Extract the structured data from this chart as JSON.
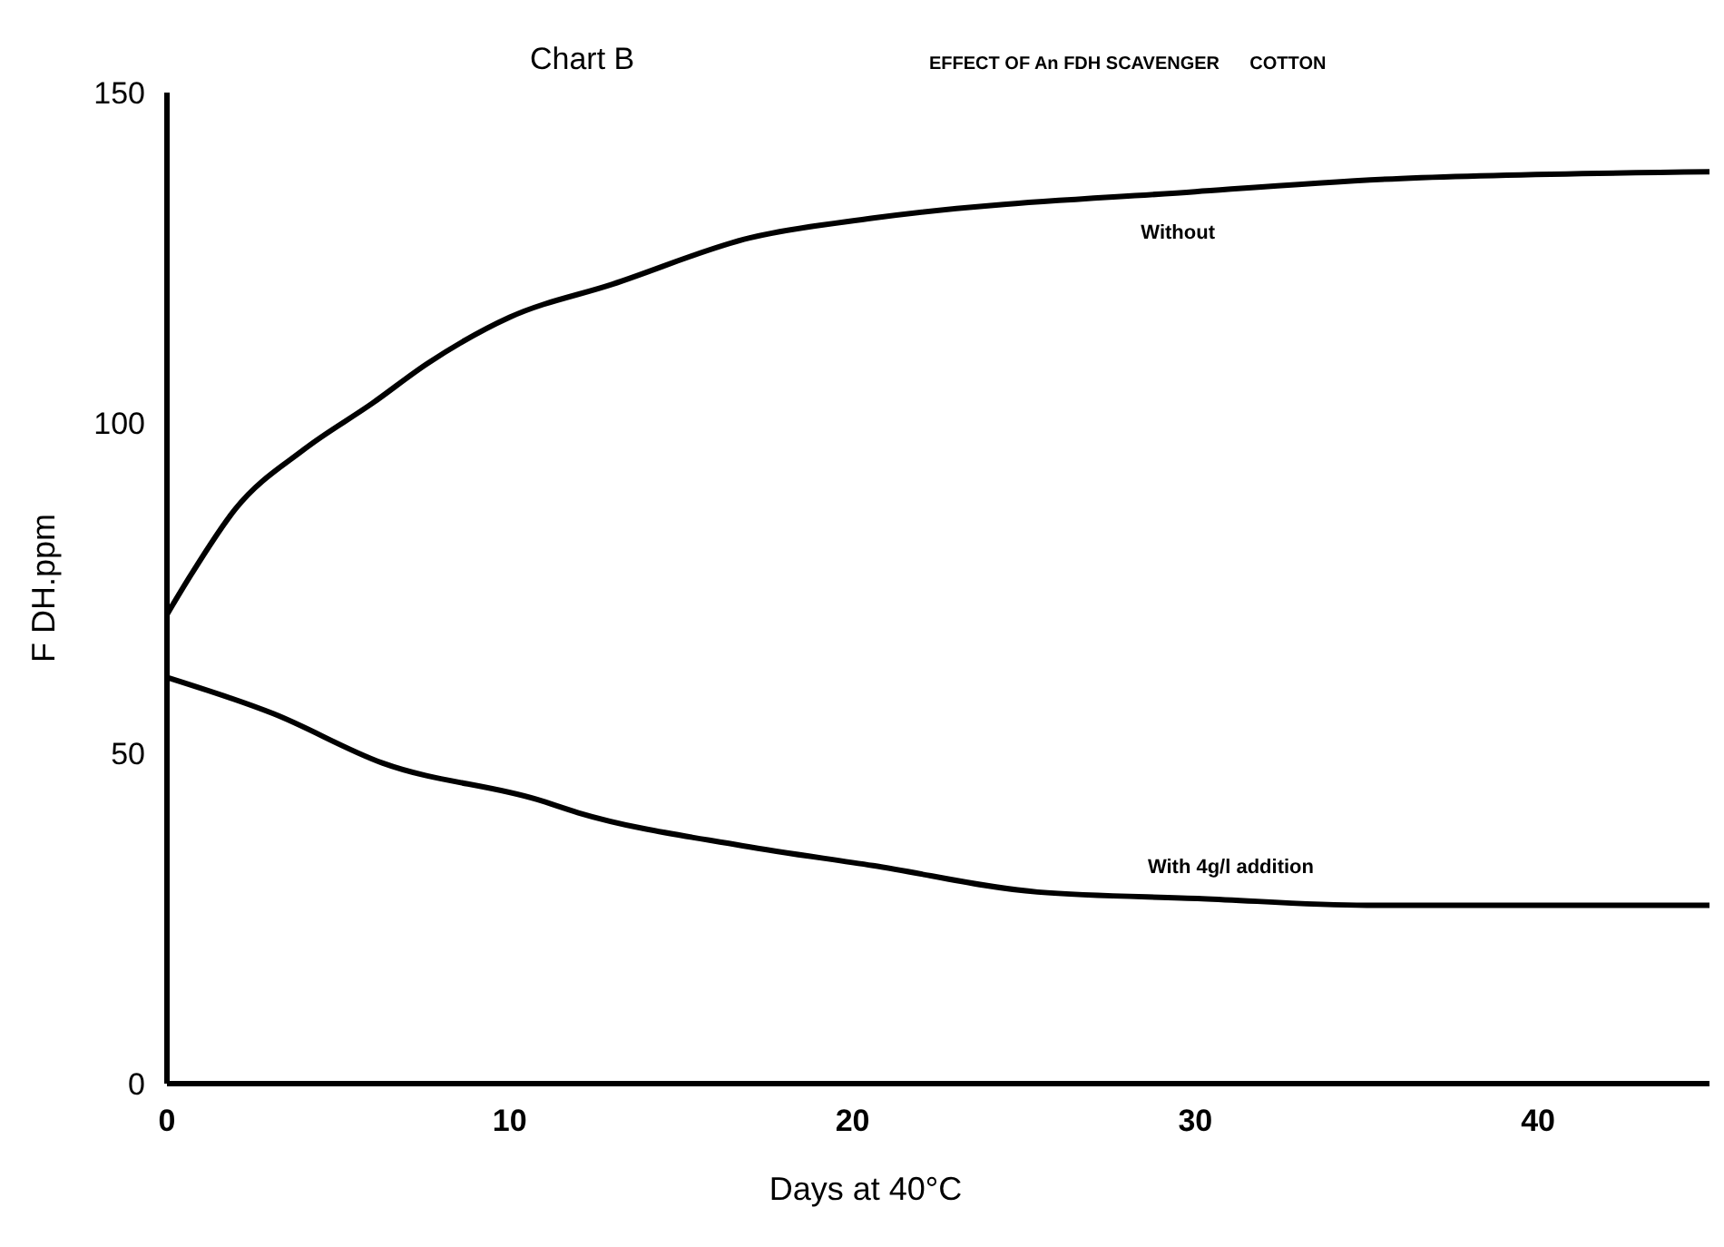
{
  "chart_data": {
    "type": "line",
    "title": "Chart B",
    "subtitle": "EFFECT OF An FDH SCAVENGER      COTTON",
    "xlabel": "Days at 40°C",
    "ylabel": "F DH.ppm",
    "xlim": [
      0,
      45
    ],
    "ylim": [
      0,
      150
    ],
    "xticks": [
      0,
      10,
      20,
      30,
      40
    ],
    "yticks": [
      0,
      50,
      100,
      150
    ],
    "grid": false,
    "legend": false,
    "marker": "none",
    "line_style": "solid",
    "series": [
      {
        "name": "Without",
        "color": "#000000",
        "x": [
          0,
          0.7,
          2,
          4,
          6,
          7.6,
          10,
          13,
          17,
          20.6,
          30,
          36,
          45
        ],
        "values": [
          71,
          77,
          87,
          96,
          103,
          109,
          116,
          121,
          128,
          131,
          135,
          137,
          138
        ]
      },
      {
        "name": "With 4g/l addition",
        "color": "#000000",
        "x": [
          0,
          3.1,
          6.3,
          10.8,
          12,
          16.8,
          20.6,
          25.4,
          30.2,
          35,
          45
        ],
        "values": [
          61.5,
          56,
          48.5,
          43,
          41,
          36,
          33,
          29,
          28,
          27,
          27
        ]
      }
    ]
  }
}
